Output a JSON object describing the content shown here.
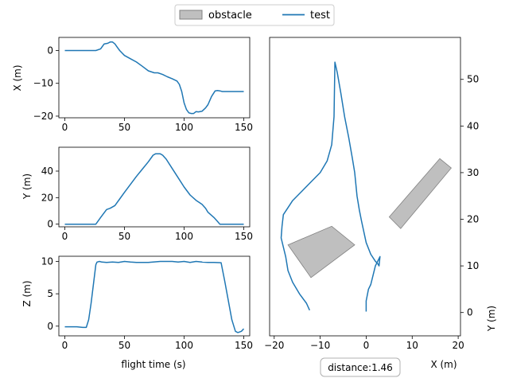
{
  "legend": {
    "placement": "top-center",
    "items": [
      {
        "label": "obstacle",
        "kind": "patch",
        "color": "#bfbfbf"
      },
      {
        "label": "test",
        "kind": "line",
        "color": "#1f77b4"
      }
    ]
  },
  "colors": {
    "series": "#1f77b4",
    "obstacle_fill": "#bfbfbf",
    "obstacle_edge": "#808080"
  },
  "annotation": {
    "text": "distance:1.46"
  },
  "chart_data": [
    {
      "id": "x_vs_time",
      "type": "line",
      "xlabel": "",
      "ylabel": "X (m)",
      "xlim": [
        -5,
        155
      ],
      "ylim": [
        -20.5,
        4
      ],
      "xticks": [
        0,
        50,
        100,
        150
      ],
      "yticks": [
        0,
        -10,
        -20
      ],
      "series": [
        {
          "x": [
            0,
            10,
            20,
            26,
            30,
            33,
            36,
            38,
            40,
            42,
            44,
            46,
            50,
            55,
            60,
            65,
            70,
            75,
            78,
            82,
            86,
            90,
            94,
            96,
            98,
            100,
            102,
            104,
            106,
            108,
            110,
            112,
            115,
            118,
            120,
            123,
            126,
            128,
            130,
            132,
            135,
            140,
            145,
            150
          ],
          "y": [
            0,
            0,
            0,
            0,
            0.5,
            2,
            2.2,
            2.6,
            2.6,
            2,
            1,
            0,
            -1.5,
            -2.5,
            -3.5,
            -4.8,
            -6.2,
            -6.8,
            -6.8,
            -7.3,
            -8,
            -8.6,
            -9.3,
            -10.3,
            -12.5,
            -16,
            -18,
            -19,
            -19.2,
            -19.2,
            -18.6,
            -18.7,
            -18.5,
            -17.5,
            -16.5,
            -14,
            -12.3,
            -12.2,
            -12.3,
            -12.5,
            -12.5,
            -12.5,
            -12.5,
            -12.5
          ]
        }
      ]
    },
    {
      "id": "y_vs_time",
      "type": "line",
      "xlabel": "",
      "ylabel": "Y (m)",
      "xlim": [
        -5,
        155
      ],
      "ylim": [
        -2,
        58
      ],
      "xticks": [
        0,
        50,
        100,
        150
      ],
      "yticks": [
        0,
        20,
        40
      ],
      "series": [
        {
          "x": [
            0,
            10,
            20,
            26,
            30,
            35,
            38,
            42,
            46,
            50,
            55,
            60,
            65,
            70,
            74,
            76,
            78,
            80,
            82,
            85,
            90,
            95,
            100,
            105,
            110,
            115,
            118,
            120,
            125,
            128,
            130,
            135,
            140,
            145,
            150
          ],
          "y": [
            0,
            0,
            0,
            0,
            5,
            11,
            12,
            14,
            19,
            24,
            30,
            36,
            41.5,
            47,
            52,
            53,
            53,
            53,
            52,
            49,
            42,
            35,
            28,
            22,
            18,
            15,
            12,
            9,
            5,
            2,
            0,
            0,
            0,
            0,
            0
          ]
        }
      ]
    },
    {
      "id": "z_vs_time",
      "type": "line",
      "xlabel": "flight time (s)",
      "ylabel": "Z (m)",
      "xlim": [
        -5,
        155
      ],
      "ylim": [
        -1.5,
        10.8
      ],
      "xticks": [
        0,
        50,
        100,
        150
      ],
      "yticks": [
        0,
        5,
        10
      ],
      "series": [
        {
          "x": [
            0,
            5,
            10,
            15,
            18,
            20,
            22,
            24,
            26,
            27,
            29,
            31,
            35,
            40,
            45,
            50,
            55,
            60,
            70,
            80,
            90,
            95,
            100,
            105,
            110,
            115,
            120,
            125,
            131,
            134,
            137,
            140,
            143,
            145,
            148,
            150
          ],
          "y": [
            -0.1,
            -0.1,
            -0.1,
            -0.2,
            -0.2,
            1,
            3.5,
            6.5,
            9.5,
            9.9,
            10,
            9.9,
            9.85,
            9.9,
            9.85,
            10,
            9.9,
            9.85,
            9.85,
            10,
            10,
            9.9,
            10,
            9.85,
            10,
            9.9,
            9.85,
            9.85,
            9.8,
            7,
            4,
            1,
            -0.8,
            -1,
            -0.8,
            -0.4
          ]
        }
      ]
    },
    {
      "id": "xy_map",
      "type": "line",
      "xlabel": "X (m)",
      "ylabel": "Y (m)",
      "xlim": [
        -21,
        20.5
      ],
      "ylim": [
        -5,
        59
      ],
      "xticks": [
        -20,
        -10,
        0,
        10,
        20
      ],
      "yticks": [
        0,
        10,
        20,
        30,
        40,
        50
      ],
      "ytick_side": "right",
      "obstacles": [
        [
          [
            -17,
            14.5
          ],
          [
            -7.5,
            18.5
          ],
          [
            -2.5,
            14.5
          ],
          [
            -12,
            7.5
          ]
        ],
        [
          [
            5,
            20.5
          ],
          [
            16,
            33
          ],
          [
            18.5,
            31
          ],
          [
            7.5,
            18
          ]
        ]
      ],
      "series": [
        {
          "x": [
            -12.3,
            -13,
            -14.5,
            -16,
            -17,
            -17.5,
            -18.5,
            -18.3,
            -18,
            -17,
            -16,
            -14,
            -12,
            -10,
            -8.5,
            -7.5,
            -7,
            -6.8,
            -6.3,
            -5.5,
            -4.7,
            -3.8,
            -3,
            -2.5,
            -2,
            -1.5,
            -1,
            0,
            1,
            2,
            2.5,
            2.8,
            3,
            2,
            1.5,
            1,
            0.5,
            0,
            0
          ],
          "y": [
            0.5,
            2,
            4,
            6.5,
            9,
            12,
            16,
            18.5,
            21,
            22.5,
            24,
            26,
            28,
            30,
            32.5,
            36,
            42,
            53.7,
            51.5,
            47,
            42,
            37.5,
            33,
            30,
            25,
            22,
            19.5,
            15,
            12.5,
            11,
            10.5,
            10,
            12,
            10,
            8,
            6,
            5,
            2.5,
            0.2
          ]
        }
      ]
    }
  ]
}
